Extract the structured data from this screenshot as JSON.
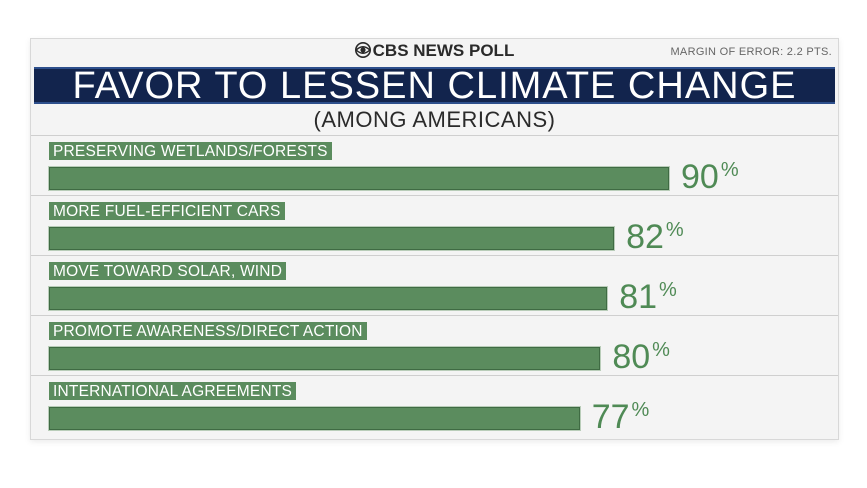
{
  "brand": "CBS NEWS POLL",
  "margin_of_error": "MARGIN OF ERROR: 2.2 PTS.",
  "colors": {
    "bar": "#5b8c5e",
    "value_text": "#4f8a55",
    "title_bar": "#12244d"
  },
  "chart_data": {
    "type": "bar",
    "orientation": "horizontal",
    "title": "FAVOR TO LESSEN CLIMATE CHANGE",
    "subtitle": "(AMONG AMERICANS)",
    "categories": [
      "PRESERVING WETLANDS/FORESTS",
      "MORE FUEL-EFFICIENT CARS",
      "MOVE TOWARD SOLAR, WIND",
      "PROMOTE AWARENESS/DIRECT ACTION",
      "INTERNATIONAL AGREEMENTS"
    ],
    "values": [
      90,
      82,
      81,
      80,
      77
    ],
    "value_unit": "%",
    "xlim": [
      0,
      100
    ],
    "grid": false
  }
}
